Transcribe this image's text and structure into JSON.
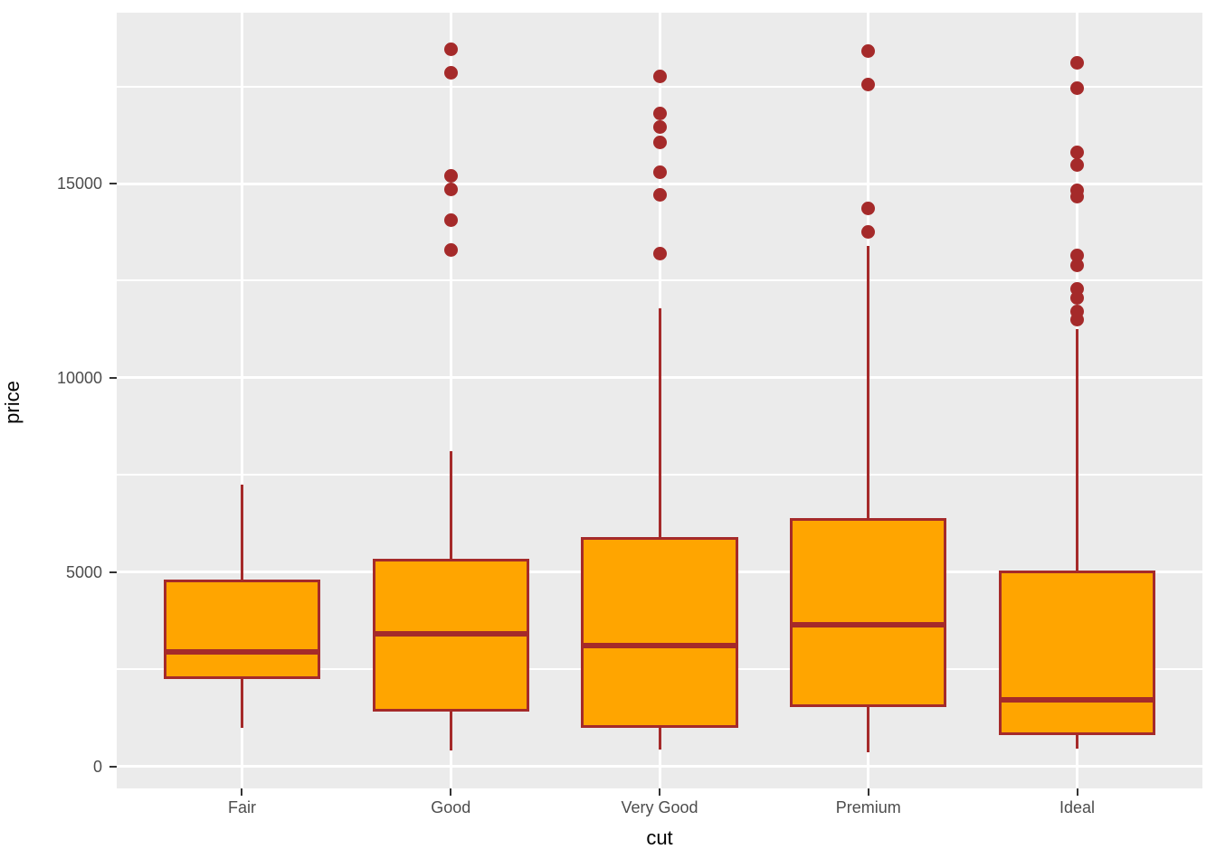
{
  "chart_data": {
    "type": "boxplot",
    "title": "",
    "xlabel": "cut",
    "ylabel": "price",
    "categories": [
      "Fair",
      "Good",
      "Very Good",
      "Premium",
      "Ideal"
    ],
    "y_axis": {
      "major_ticks": [
        0,
        5000,
        10000,
        15000
      ],
      "minor_gridlines": [
        2500,
        7500,
        12500,
        17500
      ],
      "ylim": [
        -570,
        19400
      ]
    },
    "grid": "on",
    "legend": "none",
    "series": [
      {
        "category": "Fair",
        "whisker_low": 1000,
        "q1": 2250,
        "median": 2950,
        "q3": 4800,
        "whisker_high": 7250,
        "outliers": []
      },
      {
        "category": "Good",
        "whisker_low": 400,
        "q1": 1400,
        "median": 3400,
        "q3": 5350,
        "whisker_high": 8100,
        "outliers": [
          18450,
          17850,
          15200,
          14850,
          14050,
          13300
        ]
      },
      {
        "category": "Very Good",
        "whisker_low": 425,
        "q1": 1000,
        "median": 3100,
        "q3": 5900,
        "whisker_high": 11800,
        "outliers": [
          17750,
          16800,
          16450,
          16050,
          15300,
          14700,
          13200
        ]
      },
      {
        "category": "Premium",
        "whisker_low": 350,
        "q1": 1525,
        "median": 3650,
        "q3": 6400,
        "whisker_high": 13400,
        "outliers": [
          18400,
          17550,
          14350,
          13750
        ]
      },
      {
        "category": "Ideal",
        "whisker_low": 450,
        "q1": 800,
        "median": 1700,
        "q3": 5050,
        "whisker_high": 11250,
        "outliers": [
          18100,
          17450,
          15800,
          15475,
          14825,
          14675,
          13150,
          12900,
          12300,
          12050,
          11700,
          11500
        ]
      }
    ],
    "colors": {
      "box_fill": "#FFA500",
      "box_stroke": "#A52A2A",
      "median_line": "#A52A2A",
      "outlier_point": "#A52A2A",
      "panel_background": "#EBEBEB",
      "gridline": "#FFFFFF",
      "tick_label": "#4D4D4D",
      "axis_title": "#000000",
      "tick_mark": "#333333"
    }
  }
}
